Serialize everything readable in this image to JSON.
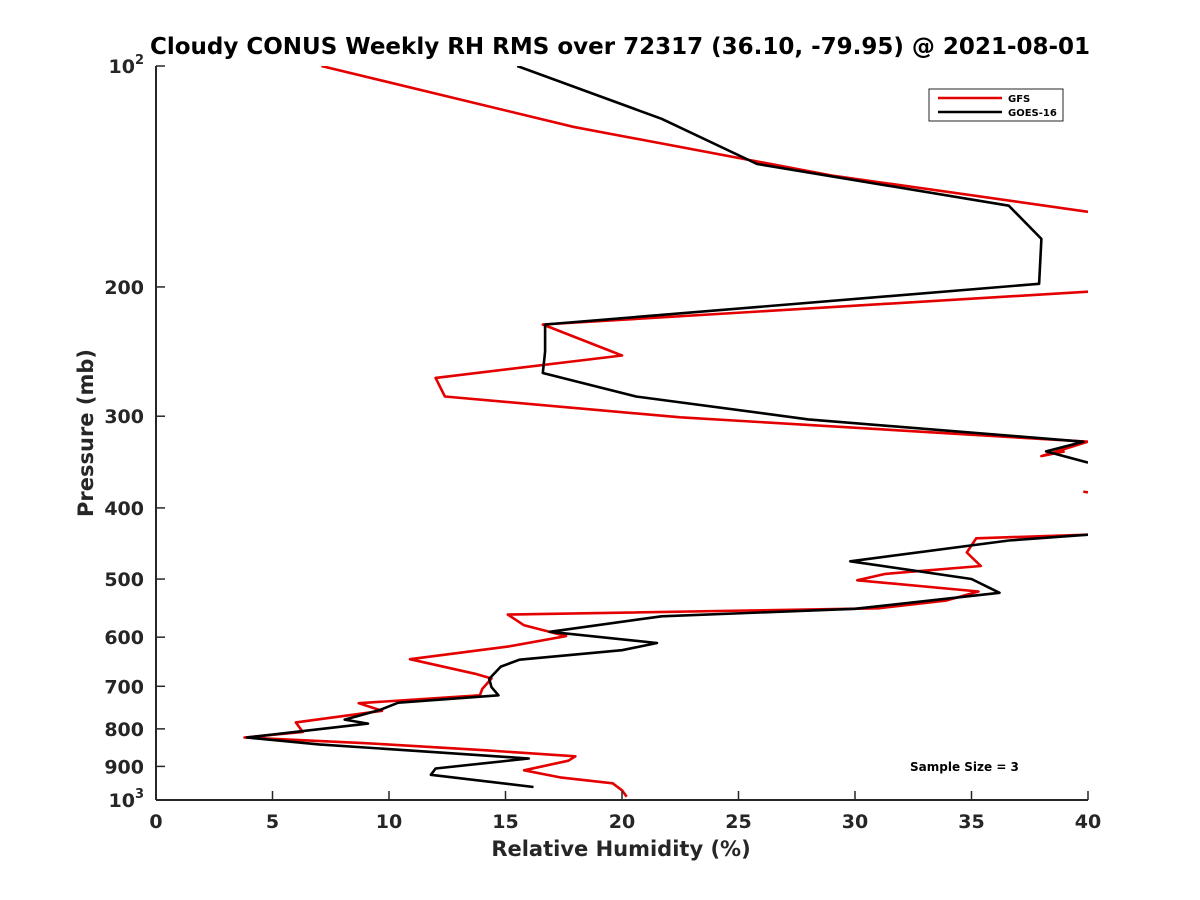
{
  "chart_data": {
    "type": "line",
    "orientation": "profile",
    "title": "Cloudy CONUS Weekly RH RMS over 72317 (36.10, -79.95) @ 2021-08-01",
    "xlabel": "Relative Humidity (%)",
    "ylabel": "Pressure (mb)",
    "xlim": [
      0,
      40
    ],
    "ylim": [
      100,
      1000
    ],
    "y_scale": "log",
    "y_reversed": true,
    "grid": false,
    "x_ticks": [
      "0",
      "5",
      "10",
      "15",
      "20",
      "25",
      "30",
      "35",
      "40"
    ],
    "y_ticks": [
      {
        "value": 100,
        "base": "10",
        "exp": "2",
        "text": ""
      },
      {
        "value": 200,
        "base": "",
        "exp": "",
        "text": "200"
      },
      {
        "value": 300,
        "base": "",
        "exp": "",
        "text": "300"
      },
      {
        "value": 400,
        "base": "",
        "exp": "",
        "text": "400"
      },
      {
        "value": 500,
        "base": "",
        "exp": "",
        "text": "500"
      },
      {
        "value": 600,
        "base": "",
        "exp": "",
        "text": "600"
      },
      {
        "value": 700,
        "base": "",
        "exp": "",
        "text": "700"
      },
      {
        "value": 800,
        "base": "",
        "exp": "",
        "text": "800"
      },
      {
        "value": 900,
        "base": "",
        "exp": "",
        "text": "900"
      },
      {
        "value": 1000,
        "base": "10",
        "exp": "3",
        "text": ""
      }
    ],
    "legend_position": "top-right",
    "annotation": "Sample Size = 3",
    "series": [
      {
        "name": "GFS",
        "color": "#e50000",
        "segments": [
          [
            [
              7.1,
              100
            ],
            [
              17.9,
              121
            ],
            [
              29.0,
              141
            ],
            [
              40.0,
              158
            ]
          ],
          [
            [
              40.0,
              203
            ],
            [
              16.6,
              225
            ],
            [
              20.0,
              248
            ],
            [
              12.0,
              266
            ],
            [
              12.4,
              282
            ],
            [
              22.5,
              301
            ],
            [
              40.0,
              325
            ]
          ],
          [
            [
              40.0,
              325
            ],
            [
              38.0,
              340
            ],
            [
              39.0,
              335
            ]
          ],
          [
            [
              39.8,
              380
            ],
            [
              40.0,
              381
            ]
          ],
          [
            [
              40.0,
              435
            ],
            [
              35.2,
              440
            ],
            [
              34.8,
              460
            ],
            [
              35.4,
              480
            ],
            [
              31.3,
              492
            ],
            [
              30.1,
              502
            ],
            [
              35.3,
              520
            ],
            [
              33.9,
              535
            ],
            [
              31.0,
              548
            ],
            [
              15.1,
              559
            ],
            [
              15.8,
              578
            ],
            [
              17.6,
              598
            ],
            [
              15.1,
              618
            ],
            [
              10.9,
              643
            ],
            [
              13.7,
              673
            ],
            [
              14.4,
              683
            ],
            [
              14.0,
              706
            ],
            [
              13.9,
              720
            ],
            [
              8.7,
              738
            ],
            [
              9.7,
              756
            ],
            [
              6.0,
              784
            ],
            [
              6.3,
              808
            ],
            [
              3.8,
              822
            ],
            [
              9.1,
              837
            ],
            [
              14.0,
              855
            ],
            [
              18.0,
              872
            ],
            [
              17.7,
              884
            ],
            [
              15.8,
              911
            ],
            [
              17.4,
              932
            ],
            [
              19.6,
              949
            ],
            [
              20.0,
              970
            ],
            [
              20.2,
              990
            ]
          ]
        ]
      },
      {
        "name": "GOES-16",
        "color": "#000000",
        "segments": [
          [
            [
              15.5,
              100
            ],
            [
              21.7,
              118
            ],
            [
              25.8,
              136
            ],
            [
              36.6,
              155
            ],
            [
              38.0,
              172
            ],
            [
              37.9,
              198
            ],
            [
              16.7,
              225
            ],
            [
              16.7,
              245
            ],
            [
              16.6,
              262
            ],
            [
              20.6,
              282
            ],
            [
              28.0,
              303
            ],
            [
              39.8,
              325
            ],
            [
              38.2,
              335
            ],
            [
              40.0,
              347
            ]
          ],
          [
            [
              40.0,
              435
            ],
            [
              36.6,
              443
            ],
            [
              29.8,
              473
            ],
            [
              35.0,
              500
            ],
            [
              36.2,
              522
            ],
            [
              30.0,
              549
            ],
            [
              21.7,
              562
            ],
            [
              16.9,
              590
            ],
            [
              21.5,
              611
            ],
            [
              20.0,
              625
            ],
            [
              15.6,
              644
            ],
            [
              14.8,
              658
            ],
            [
              14.3,
              684
            ],
            [
              14.4,
              702
            ],
            [
              14.7,
              720
            ],
            [
              10.4,
              737
            ],
            [
              9.6,
              754
            ],
            [
              8.1,
              777
            ],
            [
              9.1,
              787
            ],
            [
              3.9,
              822
            ],
            [
              7.0,
              840
            ],
            [
              12.3,
              862
            ],
            [
              16.0,
              878
            ],
            [
              12.0,
              906
            ],
            [
              11.8,
              924
            ],
            [
              16.2,
              960
            ]
          ]
        ]
      }
    ]
  }
}
